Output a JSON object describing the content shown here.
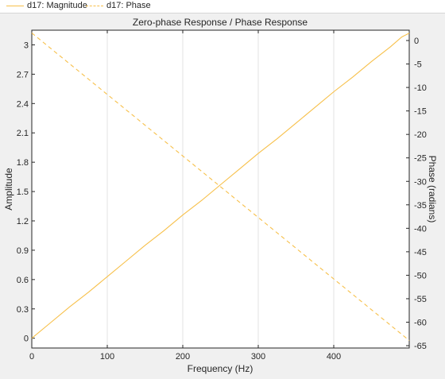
{
  "chart_data": {
    "type": "line",
    "title": "Zero-phase Response / Phase Response",
    "xlabel": "Frequency (Hz)",
    "ylabel": "Amplitude",
    "y2label": "Phase (radians)",
    "xlim": [
      0,
      500
    ],
    "ylim": [
      -0.1,
      3.15
    ],
    "y2lim": [
      -65.5,
      2.2
    ],
    "x_ticks": [
      "0",
      "100",
      "200",
      "300",
      "400"
    ],
    "y_ticks": [
      "0",
      "0.3",
      "0.6",
      "0.9",
      "1.2",
      "1.5",
      "1.8",
      "2.1",
      "2.4",
      "2.7",
      "3"
    ],
    "y2_ticks": [
      "0",
      "-5",
      "-10",
      "-15",
      "-20",
      "-25",
      "-30",
      "-35",
      "-40",
      "-45",
      "-50",
      "-55",
      "-60",
      "-65"
    ],
    "grid": "vertical",
    "legend_position": "top",
    "series": [
      {
        "name": "d17: Magnitude",
        "axis": "left",
        "style": "solid",
        "x": [
          0,
          25,
          50,
          75,
          100,
          125,
          150,
          175,
          200,
          225,
          250,
          275,
          300,
          325,
          350,
          375,
          400,
          425,
          450,
          475,
          490,
          500
        ],
        "values": [
          0.0,
          0.16,
          0.32,
          0.47,
          0.63,
          0.79,
          0.95,
          1.1,
          1.26,
          1.41,
          1.57,
          1.73,
          1.89,
          2.04,
          2.2,
          2.36,
          2.52,
          2.67,
          2.83,
          2.98,
          3.08,
          3.12
        ]
      },
      {
        "name": "d17: Phase",
        "axis": "right",
        "style": "dashed",
        "x": [
          0,
          500
        ],
        "values": [
          1.6,
          -63.9
        ]
      }
    ],
    "colors": {
      "line": "#f7c04a",
      "grid": "#e3e3e3",
      "axes": "#262626"
    }
  }
}
